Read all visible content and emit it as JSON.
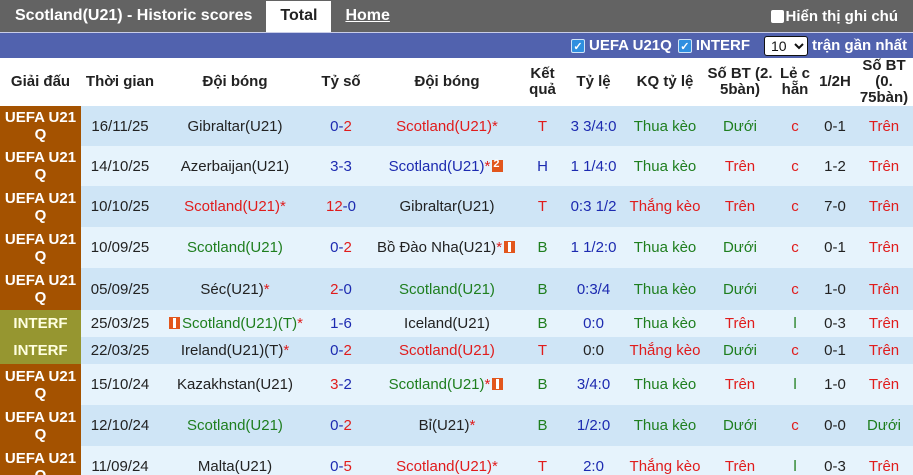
{
  "header": {
    "title": "Scotland(U21) - Historic scores",
    "tabs": [
      {
        "label": "Total",
        "active": true
      },
      {
        "label": "Home",
        "active": false
      }
    ],
    "show_notes_label": "Hiển thị ghi chú"
  },
  "filters": {
    "leagues": [
      {
        "label": "UEFA U21Q",
        "checked": true
      },
      {
        "label": "INTERF",
        "checked": true
      }
    ],
    "count_selected": "10",
    "count_suffix": "trận gần nhất"
  },
  "columns": [
    "Giải đấu",
    "Thời gian",
    "Đội bóng",
    "Tỷ số",
    "Đội bóng",
    "Kết quả",
    "Tỷ lệ",
    "KQ tỷ lệ",
    "Số BT (2. 5bàn)",
    "Lẻ c hẵn",
    "1/2H",
    "Số BT (0. 75bàn)"
  ],
  "colors": {
    "uefa_league_bg": "#a45200",
    "interf_league_bg": "#969630",
    "filter_bar_bg": "#5162ae",
    "top_bar_bg": "#636363",
    "row_odd_bg": "#cfe5f6",
    "row_even_bg": "#e6f3fc",
    "red": "#e01c1c",
    "green": "#1e7e1e",
    "blue": "#1c2ab0"
  },
  "rows": [
    {
      "league": "UEFA U21 Q",
      "date": "16/11/25",
      "home": "Gibraltar(U21)",
      "score_h": "0",
      "score_a": "2",
      "away": "Scotland(U21)*",
      "result": "T",
      "odds": "3 3/4:0",
      "odds_result": "Thua kèo",
      "ou25": "Dưới",
      "oe": "c",
      "ht": "0-1",
      "ou075": "Trên"
    },
    {
      "league": "UEFA U21 Q",
      "date": "14/10/25",
      "home": "Azerbaijan(U21)",
      "score_h": "3",
      "score_a": "3",
      "away": "Scotland(U21)*",
      "result": "H",
      "odds": "1 1/4:0",
      "odds_result": "Thua kèo",
      "ou25": "Trên",
      "oe": "c",
      "ht": "1-2",
      "ou075": "Trên"
    },
    {
      "league": "UEFA U21 Q",
      "date": "10/10/25",
      "home": "Scotland(U21)*",
      "score_h": "12",
      "score_a": "0",
      "away": "Gibraltar(U21)",
      "result": "T",
      "odds": "0:3 1/2",
      "odds_result": "Thắng kèo",
      "ou25": "Trên",
      "oe": "c",
      "ht": "7-0",
      "ou075": "Trên"
    },
    {
      "league": "UEFA U21 Q",
      "date": "10/09/25",
      "home": "Scotland(U21)",
      "score_h": "0",
      "score_a": "2",
      "away": "Bồ Đào Nha(U21)*",
      "result": "B",
      "odds": "1 1/2:0",
      "odds_result": "Thua kèo",
      "ou25": "Dưới",
      "oe": "c",
      "ht": "0-1",
      "ou075": "Trên"
    },
    {
      "league": "UEFA U21 Q",
      "date": "05/09/25",
      "home": "Séc(U21)*",
      "score_h": "2",
      "score_a": "0",
      "away": "Scotland(U21)",
      "result": "B",
      "odds": "0:3/4",
      "odds_result": "Thua kèo",
      "ou25": "Dưới",
      "oe": "c",
      "ht": "1-0",
      "ou075": "Trên"
    },
    {
      "league": "INTERF",
      "date": "25/03/25",
      "home": "Scotland(U21)(T)*",
      "score_h": "1",
      "score_a": "6",
      "away": "Iceland(U21)",
      "result": "B",
      "odds": "0:0",
      "odds_result": "Thua kèo",
      "ou25": "Trên",
      "oe": "l",
      "ht": "0-3",
      "ou075": "Trên"
    },
    {
      "league": "INTERF",
      "date": "22/03/25",
      "home": "Ireland(U21)(T)*",
      "score_h": "0",
      "score_a": "2",
      "away": "Scotland(U21)",
      "result": "T",
      "odds": "0:0",
      "odds_result": "Thắng kèo",
      "ou25": "Dưới",
      "oe": "c",
      "ht": "0-1",
      "ou075": "Trên"
    },
    {
      "league": "UEFA U21 Q",
      "date": "15/10/24",
      "home": "Kazakhstan(U21)",
      "score_h": "3",
      "score_a": "2",
      "away": "Scotland(U21)*",
      "result": "B",
      "odds": "3/4:0",
      "odds_result": "Thua kèo",
      "ou25": "Trên",
      "oe": "l",
      "ht": "1-0",
      "ou075": "Trên"
    },
    {
      "league": "UEFA U21 Q",
      "date": "12/10/24",
      "home": "Scotland(U21)",
      "score_h": "0",
      "score_a": "2",
      "away": "Bỉ(U21)*",
      "result": "B",
      "odds": "1/2:0",
      "odds_result": "Thua kèo",
      "ou25": "Dưới",
      "oe": "c",
      "ht": "0-0",
      "ou075": "Dưới"
    },
    {
      "league": "UEFA U21 Q",
      "date": "11/09/24",
      "home": "Malta(U21)",
      "score_h": "0",
      "score_a": "5",
      "away": "Scotland(U21)*",
      "result": "T",
      "odds": "2:0",
      "odds_result": "Thắng kèo",
      "ou25": "Trên",
      "oe": "l",
      "ht": "0-3",
      "ou075": "Trên"
    }
  ]
}
